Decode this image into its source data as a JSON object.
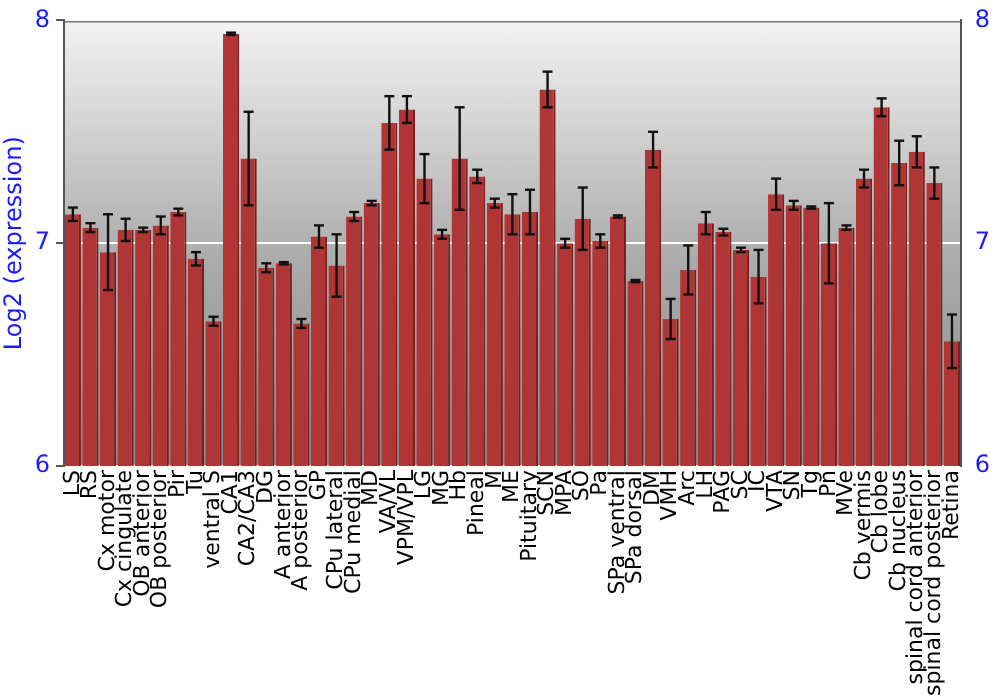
{
  "chart_data": {
    "type": "bar",
    "ylabel": "Log2 (expression)",
    "categories": [
      "LS",
      "RS",
      "Cx motor",
      "Cx cingulate",
      "OB anterior",
      "OB posterior",
      "Pir",
      "Tu",
      "ventral S",
      "CA1",
      "CA2/CA3",
      "DG",
      "A anterior",
      "A posterior",
      "GP",
      "CPu lateral",
      "CPu medial",
      "MD",
      "VA/VL",
      "VPM/VPL",
      "LG",
      "MG",
      "Hb",
      "Pineal",
      "M",
      "ME",
      "Pituitary",
      "SCN",
      "MPA",
      "SO",
      "Pa",
      "SPa ventral",
      "SPa dorsal",
      "DM",
      "VMH",
      "Arc",
      "LH",
      "PAG",
      "SC",
      "IC",
      "VTA",
      "SN",
      "Tg",
      "Pn",
      "MVe",
      "Cb vermis",
      "Cb lobe",
      "Cb nucleus",
      "spinal cord anterior",
      "spinal cord posterior",
      "Retina"
    ],
    "values": [
      7.13,
      7.07,
      6.96,
      7.06,
      7.06,
      7.08,
      7.14,
      6.93,
      6.65,
      7.94,
      7.38,
      6.89,
      6.91,
      6.64,
      7.03,
      6.9,
      7.12,
      7.18,
      7.54,
      7.6,
      7.29,
      7.04,
      7.38,
      7.3,
      7.18,
      7.13,
      7.14,
      7.69,
      7.0,
      7.11,
      7.01,
      7.12,
      6.83,
      7.42,
      6.66,
      6.88,
      7.09,
      7.05,
      6.97,
      6.85,
      7.22,
      7.17,
      7.16,
      7.0,
      7.07,
      7.29,
      7.61,
      7.36,
      7.41,
      7.27,
      6.56
    ],
    "errors": [
      0.03,
      0.02,
      0.17,
      0.05,
      0.01,
      0.04,
      0.015,
      0.03,
      0.02,
      0.005,
      0.21,
      0.02,
      0.005,
      0.02,
      0.05,
      0.14,
      0.02,
      0.01,
      0.12,
      0.06,
      0.11,
      0.02,
      0.23,
      0.03,
      0.02,
      0.09,
      0.1,
      0.08,
      0.02,
      0.14,
      0.03,
      0.005,
      0.005,
      0.08,
      0.09,
      0.11,
      0.05,
      0.015,
      0.01,
      0.12,
      0.07,
      0.02,
      0.005,
      0.18,
      0.01,
      0.04,
      0.04,
      0.1,
      0.07,
      0.07,
      0.12
    ],
    "color": "#b03535",
    "ylim": [
      6,
      8
    ],
    "yticks": [
      6,
      7,
      8
    ],
    "y2lim": [
      6,
      8
    ],
    "y2ticks": [
      6,
      7,
      8
    ],
    "grid": "y",
    "legend": false
  }
}
